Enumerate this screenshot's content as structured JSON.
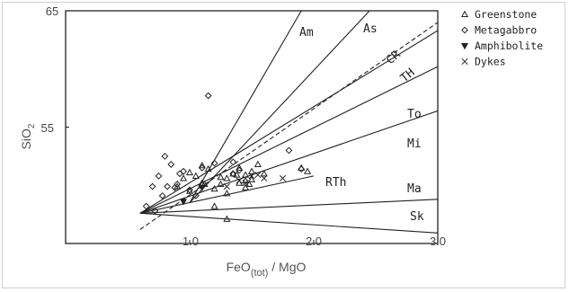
{
  "chart_data": {
    "type": "scatter",
    "xlabel": "FeO(tot) / MgO",
    "ylabel": "SiO2",
    "xlim": [
      0.0,
      3.0
    ],
    "ylim": [
      45,
      65
    ],
    "x_ticks": [
      "1.0",
      "2.0",
      "3.0"
    ],
    "y_ticks": [
      "55",
      "65"
    ],
    "field_labels": [
      "Am",
      "As",
      "CR",
      "TH",
      "To",
      "Mi",
      "RTh",
      "Ma",
      "Sk"
    ],
    "legend": [
      {
        "name": "Greenstone",
        "symbol": "triangle-up"
      },
      {
        "name": "Metagabbro",
        "symbol": "diamond"
      },
      {
        "name": "Amphibolite",
        "symbol": "triangle-down"
      },
      {
        "name": "Dykes",
        "symbol": "cross"
      }
    ],
    "boundary_lines": [
      {
        "label": "Am",
        "from": [
          1.0,
          48.5
        ],
        "to": [
          1.9,
          65.0
        ],
        "style": "solid"
      },
      {
        "label": "As",
        "from": [
          1.0,
          48.5
        ],
        "to": [
          2.45,
          65.0
        ],
        "style": "solid"
      },
      {
        "label": "CR",
        "from": [
          0.6,
          46.2
        ],
        "to": [
          3.0,
          64.0
        ],
        "style": "dashed"
      },
      {
        "label": "TH",
        "from": [
          0.6,
          47.6
        ],
        "to": [
          3.0,
          63.3
        ],
        "style": "solid"
      },
      {
        "label": "To",
        "from": [
          0.6,
          47.6
        ],
        "to": [
          3.0,
          60.2
        ],
        "style": "solid"
      },
      {
        "label": "Mi",
        "from": [
          0.6,
          47.6
        ],
        "to": [
          3.0,
          56.4
        ],
        "style": "solid"
      },
      {
        "label": "RTh",
        "from": [
          0.6,
          47.6
        ],
        "to": [
          2.0,
          50.8
        ],
        "style": "solid"
      },
      {
        "label": "Ma",
        "from": [
          0.6,
          47.6
        ],
        "to": [
          3.0,
          48.8
        ],
        "style": "solid"
      },
      {
        "label": "Sk",
        "from": [
          0.6,
          47.6
        ],
        "to": [
          3.0,
          45.9
        ],
        "style": "solid"
      }
    ],
    "series": [
      {
        "name": "Greenstone",
        "symbol": "triangle-up",
        "points": [
          [
            1.0,
            51.1
          ],
          [
            1.05,
            50.8
          ],
          [
            1.1,
            50.2
          ],
          [
            1.15,
            51.4
          ],
          [
            1.2,
            49.7
          ],
          [
            1.25,
            50.1
          ],
          [
            1.3,
            50.6
          ],
          [
            1.3,
            49.3
          ],
          [
            1.35,
            51.0
          ],
          [
            1.4,
            50.2
          ],
          [
            1.4,
            51.5
          ],
          [
            1.45,
            50.9
          ],
          [
            1.45,
            49.8
          ],
          [
            1.5,
            51.2
          ],
          [
            1.5,
            50.5
          ],
          [
            1.55,
            51.8
          ],
          [
            1.6,
            51.0
          ],
          [
            1.9,
            51.5
          ],
          [
            1.95,
            51.2
          ],
          [
            1.2,
            48.2
          ],
          [
            1.3,
            47.1
          ],
          [
            1.45,
            50.4
          ],
          [
            1.1,
            51.7
          ],
          [
            0.9,
            49.9
          ],
          [
            1.0,
            49.5
          ],
          [
            1.25,
            50.7
          ],
          [
            1.38,
            50.9
          ],
          [
            1.48,
            50.1
          ],
          [
            0.95,
            50.6
          ],
          [
            1.12,
            50.1
          ]
        ]
      },
      {
        "name": "Metagabbro",
        "symbol": "diamond",
        "points": [
          [
            0.65,
            48.2
          ],
          [
            0.7,
            49.9
          ],
          [
            0.75,
            50.8
          ],
          [
            0.78,
            49.1
          ],
          [
            0.8,
            52.5
          ],
          [
            0.85,
            51.8
          ],
          [
            0.88,
            49.8
          ],
          [
            0.9,
            50.1
          ],
          [
            0.92,
            51.0
          ],
          [
            0.95,
            51.2
          ],
          [
            1.0,
            49.6
          ],
          [
            1.05,
            49.1
          ],
          [
            1.1,
            51.5
          ],
          [
            1.15,
            57.7
          ],
          [
            1.2,
            51.9
          ],
          [
            1.35,
            51.0
          ],
          [
            1.35,
            52.0
          ],
          [
            1.4,
            51.3
          ],
          [
            1.8,
            53.0
          ],
          [
            1.9,
            51.4
          ],
          [
            0.72,
            47.8
          ],
          [
            0.82,
            49.9
          ]
        ]
      },
      {
        "name": "Amphibolite",
        "symbol": "triangle-down",
        "points": [
          [
            0.95,
            48.6
          ],
          [
            1.1,
            49.8
          ]
        ]
      },
      {
        "name": "Dykes",
        "symbol": "cross",
        "points": [
          [
            1.3,
            49.9
          ],
          [
            1.4,
            50.4
          ],
          [
            1.5,
            50.8
          ],
          [
            1.55,
            50.9
          ],
          [
            1.75,
            50.6
          ],
          [
            1.45,
            50.2
          ],
          [
            1.6,
            50.6
          ]
        ]
      }
    ]
  }
}
